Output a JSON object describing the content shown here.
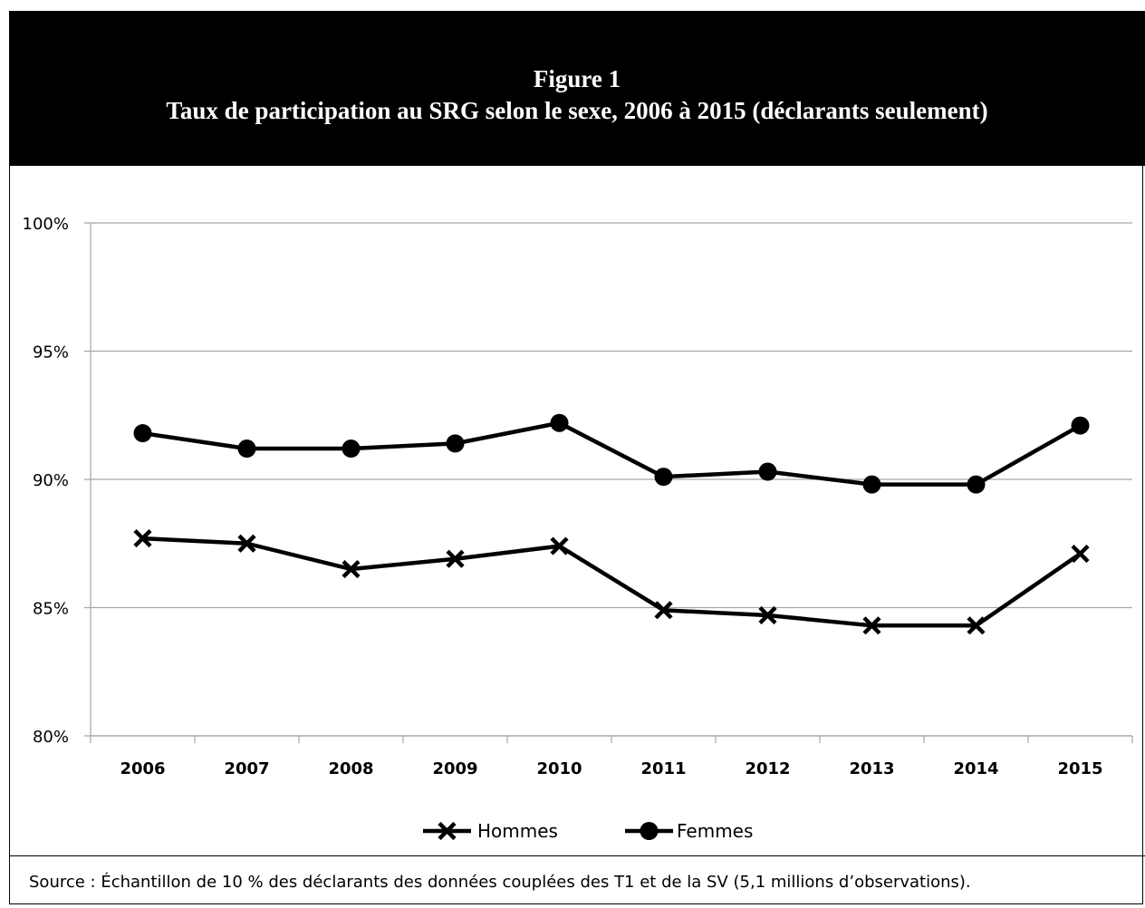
{
  "header": {
    "figure_label": "Figure 1",
    "title": "Taux de participation au SRG selon le sexe, 2006 à 2015 (déclarants seulement)"
  },
  "footer": {
    "source": "Source : Échantillon de 10 % des déclarants des données couplées des T1 et de la SV (5,1 millions d’observations)."
  },
  "chart_data": {
    "type": "line",
    "title": "Taux de participation au SRG selon le sexe, 2006 à 2015 (déclarants seulement)",
    "xlabel": "",
    "ylabel": "",
    "categories": [
      "2006",
      "2007",
      "2008",
      "2009",
      "2010",
      "2011",
      "2012",
      "2013",
      "2014",
      "2015"
    ],
    "ylim": [
      80,
      100
    ],
    "yticks": [
      "80%",
      "85%",
      "90%",
      "95%",
      "100%"
    ],
    "ytick_values": [
      80,
      85,
      90,
      95,
      100
    ],
    "grid": true,
    "legend_position": "bottom",
    "series": [
      {
        "name": "Hommes",
        "marker": "x",
        "values": [
          87.7,
          87.5,
          86.5,
          86.9,
          87.4,
          84.9,
          84.7,
          84.3,
          84.3,
          87.1
        ]
      },
      {
        "name": "Femmes",
        "marker": "circle",
        "values": [
          91.8,
          91.2,
          91.2,
          91.4,
          92.2,
          90.1,
          90.3,
          89.8,
          89.8,
          92.1
        ]
      }
    ],
    "colors": {
      "line": "#000000",
      "grid": "#a6a6a6"
    }
  }
}
